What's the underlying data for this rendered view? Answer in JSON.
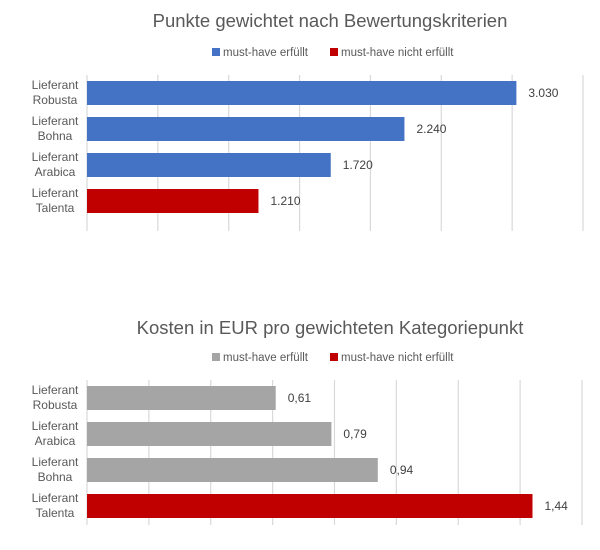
{
  "chart_data": [
    {
      "type": "bar",
      "orientation": "horizontal",
      "title": "Punkte gewichtet nach Bewertungskriterien",
      "categories": [
        [
          "Lieferant",
          "Robusta"
        ],
        [
          "Lieferant",
          "Bohna"
        ],
        [
          "Lieferant",
          "Arabica"
        ],
        [
          "Lieferant",
          "Talenta"
        ]
      ],
      "values": [
        3030,
        2240,
        1720,
        1210
      ],
      "value_labels": [
        "3.030",
        "2.240",
        "1.720",
        "1.210"
      ],
      "series_of_bar": [
        "must-have erfüllt",
        "must-have erfüllt",
        "must-have erfüllt",
        "must-have nicht erfüllt"
      ],
      "legend": [
        {
          "label": "must-have erfüllt",
          "color": "#4472c4"
        },
        {
          "label": "must-have nicht erfüllt",
          "color": "#c00000"
        }
      ],
      "legend_position": "top",
      "xlim": [
        0,
        3500
      ],
      "grid_step": 500,
      "grid": true,
      "xlabel": "",
      "ylabel": ""
    },
    {
      "type": "bar",
      "orientation": "horizontal",
      "title": "Kosten in EUR pro gewichteten Kategoriepunkt",
      "categories": [
        [
          "Lieferant",
          "Robusta"
        ],
        [
          "Lieferant",
          "Arabica"
        ],
        [
          "Lieferant",
          "Bohna"
        ],
        [
          "Lieferant",
          "Talenta"
        ]
      ],
      "values": [
        0.61,
        0.79,
        0.94,
        1.44
      ],
      "value_labels": [
        "0,61",
        "0,79",
        "0,94",
        "1,44"
      ],
      "series_of_bar": [
        "must-have erfüllt",
        "must-have erfüllt",
        "must-have erfüllt",
        "must-have nicht erfüllt"
      ],
      "legend": [
        {
          "label": "must-have erfüllt",
          "color": "#a5a5a5"
        },
        {
          "label": "must-have nicht erfüllt",
          "color": "#c00000"
        }
      ],
      "legend_position": "top",
      "xlim": [
        0,
        1.6
      ],
      "grid_step": 0.2,
      "grid": true,
      "xlabel": "",
      "ylabel": ""
    }
  ]
}
